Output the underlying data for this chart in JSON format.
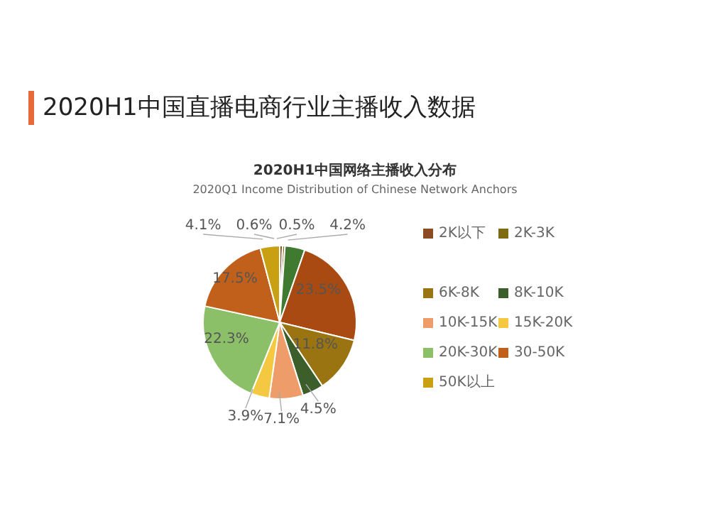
{
  "chart_data": {
    "type": "pie",
    "title": "2020H1中国直播电商行业主播收入数据",
    "subtitle": "2020H1中国网络主播收入分布",
    "annotations": [
      "2020Q1 Income Distribution of Chinese Network Anchors"
    ],
    "categories": [
      "2K以下",
      "2K-3K",
      null,
      null,
      "6K-8K",
      "8K-10K",
      "10K-15K",
      "15K-20K",
      "20K-30K",
      "30-50K",
      "50K以上"
    ],
    "values": [
      0.6,
      0.5,
      4.2,
      23.5,
      11.8,
      4.5,
      7.1,
      3.9,
      22.3,
      17.5,
      4.1
    ],
    "value_labels": [
      "0.6%",
      "0.5%",
      "4.2%",
      "23.5%",
      "11.8%",
      "4.5%",
      "7.1%",
      "3.9%",
      "22.3%",
      "17.5%",
      "4.1%"
    ],
    "colors": [
      "#8b4a22",
      "#7d6a12",
      "#3f7a30",
      "#a84a12",
      "#9a7410",
      "#3b5e2b",
      "#ee9c6a",
      "#f5c842",
      "#8cc068",
      "#c0601b",
      "#c9a012"
    ],
    "legend": "right"
  }
}
